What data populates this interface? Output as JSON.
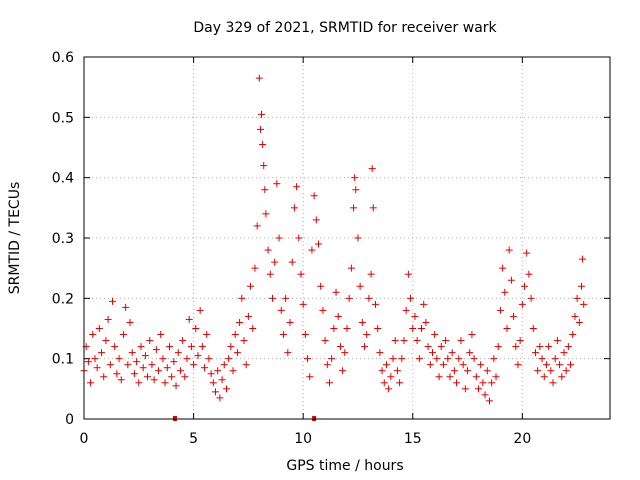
{
  "chart_data": {
    "type": "scatter",
    "title": "Day 329 of 2021, SRMTID for receiver wark",
    "xlabel": "GPS time / hours",
    "ylabel": "SRMTID / TECUs",
    "xlim": [
      0,
      24
    ],
    "ylim": [
      0,
      0.6
    ],
    "x_ticks": [
      0,
      5,
      10,
      15,
      20
    ],
    "x_tick_labels": [
      "0",
      "5",
      "10",
      "15",
      "20"
    ],
    "y_ticks": [
      0,
      0.1,
      0.2,
      0.3,
      0.4,
      0.5,
      0.6
    ],
    "y_tick_labels": [
      "0",
      "0.1",
      "0.2",
      "0.3",
      "0.4",
      "0.5",
      "0.6"
    ],
    "grid": true,
    "marker": "plus",
    "series_color": "#e00000",
    "series": [
      {
        "name": "SRMTID",
        "points": [
          [
            0.0,
            0.08
          ],
          [
            0.1,
            0.12
          ],
          [
            0.2,
            0.095
          ],
          [
            0.3,
            0.06
          ],
          [
            0.4,
            0.14
          ],
          [
            0.5,
            0.1
          ],
          [
            0.6,
            0.085
          ],
          [
            0.7,
            0.15
          ],
          [
            0.8,
            0.11
          ],
          [
            0.9,
            0.07
          ],
          [
            1.0,
            0.13
          ],
          [
            1.1,
            0.165
          ],
          [
            1.2,
            0.09
          ],
          [
            1.3,
            0.195
          ],
          [
            1.4,
            0.12
          ],
          [
            1.5,
            0.075
          ],
          [
            1.6,
            0.1
          ],
          [
            1.7,
            0.065
          ],
          [
            1.8,
            0.14
          ],
          [
            1.9,
            0.185
          ],
          [
            2.0,
            0.09
          ],
          [
            2.1,
            0.16
          ],
          [
            2.2,
            0.11
          ],
          [
            2.3,
            0.075
          ],
          [
            2.4,
            0.095
          ],
          [
            2.5,
            0.06
          ],
          [
            2.6,
            0.12
          ],
          [
            2.7,
            0.085
          ],
          [
            2.8,
            0.105
          ],
          [
            2.9,
            0.07
          ],
          [
            3.0,
            0.13
          ],
          [
            3.1,
            0.09
          ],
          [
            3.2,
            0.065
          ],
          [
            3.3,
            0.115
          ],
          [
            3.4,
            0.08
          ],
          [
            3.5,
            0.14
          ],
          [
            3.6,
            0.1
          ],
          [
            3.7,
            0.06
          ],
          [
            3.8,
            0.085
          ],
          [
            3.9,
            0.12
          ],
          [
            4.0,
            0.07
          ],
          [
            4.1,
            0.095
          ],
          [
            4.2,
            0.055
          ],
          [
            4.3,
            0.11
          ],
          [
            4.4,
            0.08
          ],
          [
            4.5,
            0.13
          ],
          [
            4.6,
            0.07
          ],
          [
            4.7,
            0.1
          ],
          [
            4.8,
            0.165
          ],
          [
            4.9,
            0.12
          ],
          [
            5.0,
            0.09
          ],
          [
            5.1,
            0.15
          ],
          [
            5.2,
            0.105
          ],
          [
            5.3,
            0.18
          ],
          [
            5.4,
            0.12
          ],
          [
            5.5,
            0.085
          ],
          [
            5.6,
            0.14
          ],
          [
            5.7,
            0.1
          ],
          [
            5.8,
            0.075
          ],
          [
            5.9,
            0.06
          ],
          [
            6.0,
            0.045
          ],
          [
            6.1,
            0.08
          ],
          [
            6.2,
            0.035
          ],
          [
            6.3,
            0.065
          ],
          [
            6.4,
            0.09
          ],
          [
            6.5,
            0.05
          ],
          [
            6.6,
            0.1
          ],
          [
            6.7,
            0.12
          ],
          [
            6.8,
            0.08
          ],
          [
            6.9,
            0.14
          ],
          [
            7.0,
            0.11
          ],
          [
            7.1,
            0.16
          ],
          [
            7.2,
            0.2
          ],
          [
            7.3,
            0.13
          ],
          [
            7.4,
            0.09
          ],
          [
            7.5,
            0.17
          ],
          [
            7.6,
            0.22
          ],
          [
            7.7,
            0.15
          ],
          [
            7.8,
            0.25
          ],
          [
            7.9,
            0.32
          ],
          [
            8.0,
            0.565
          ],
          [
            8.05,
            0.48
          ],
          [
            8.1,
            0.505
          ],
          [
            8.15,
            0.455
          ],
          [
            8.2,
            0.42
          ],
          [
            8.25,
            0.38
          ],
          [
            8.3,
            0.34
          ],
          [
            8.4,
            0.28
          ],
          [
            8.5,
            0.24
          ],
          [
            8.6,
            0.2
          ],
          [
            8.7,
            0.26
          ],
          [
            8.8,
            0.39
          ],
          [
            8.9,
            0.3
          ],
          [
            9.0,
            0.18
          ],
          [
            9.1,
            0.14
          ],
          [
            9.2,
            0.2
          ],
          [
            9.3,
            0.11
          ],
          [
            9.4,
            0.16
          ],
          [
            9.5,
            0.26
          ],
          [
            9.6,
            0.35
          ],
          [
            9.7,
            0.385
          ],
          [
            9.8,
            0.3
          ],
          [
            9.9,
            0.24
          ],
          [
            10.0,
            0.19
          ],
          [
            10.1,
            0.14
          ],
          [
            10.2,
            0.1
          ],
          [
            10.3,
            0.07
          ],
          [
            10.4,
            0.28
          ],
          [
            10.5,
            0.37
          ],
          [
            10.6,
            0.33
          ],
          [
            10.7,
            0.29
          ],
          [
            10.8,
            0.22
          ],
          [
            10.9,
            0.18
          ],
          [
            11.0,
            0.13
          ],
          [
            11.1,
            0.09
          ],
          [
            11.2,
            0.06
          ],
          [
            11.3,
            0.1
          ],
          [
            11.4,
            0.15
          ],
          [
            11.5,
            0.21
          ],
          [
            11.6,
            0.17
          ],
          [
            11.7,
            0.12
          ],
          [
            11.8,
            0.08
          ],
          [
            11.9,
            0.11
          ],
          [
            12.0,
            0.15
          ],
          [
            12.1,
            0.2
          ],
          [
            12.2,
            0.25
          ],
          [
            12.3,
            0.35
          ],
          [
            12.35,
            0.4
          ],
          [
            12.4,
            0.38
          ],
          [
            12.5,
            0.3
          ],
          [
            12.6,
            0.22
          ],
          [
            12.7,
            0.16
          ],
          [
            12.8,
            0.12
          ],
          [
            12.9,
            0.14
          ],
          [
            13.0,
            0.2
          ],
          [
            13.1,
            0.24
          ],
          [
            13.15,
            0.415
          ],
          [
            13.2,
            0.35
          ],
          [
            13.3,
            0.19
          ],
          [
            13.4,
            0.15
          ],
          [
            13.5,
            0.11
          ],
          [
            13.6,
            0.08
          ],
          [
            13.7,
            0.06
          ],
          [
            13.8,
            0.09
          ],
          [
            13.9,
            0.05
          ],
          [
            14.0,
            0.07
          ],
          [
            14.1,
            0.1
          ],
          [
            14.2,
            0.13
          ],
          [
            14.3,
            0.08
          ],
          [
            14.4,
            0.06
          ],
          [
            14.5,
            0.1
          ],
          [
            14.6,
            0.13
          ],
          [
            14.7,
            0.18
          ],
          [
            14.8,
            0.24
          ],
          [
            14.9,
            0.2
          ],
          [
            15.0,
            0.15
          ],
          [
            15.1,
            0.17
          ],
          [
            15.2,
            0.13
          ],
          [
            15.3,
            0.1
          ],
          [
            15.4,
            0.15
          ],
          [
            15.5,
            0.19
          ],
          [
            15.6,
            0.16
          ],
          [
            15.7,
            0.12
          ],
          [
            15.8,
            0.09
          ],
          [
            15.9,
            0.11
          ],
          [
            16.0,
            0.14
          ],
          [
            16.1,
            0.1
          ],
          [
            16.2,
            0.07
          ],
          [
            16.3,
            0.12
          ],
          [
            16.4,
            0.09
          ],
          [
            16.5,
            0.13
          ],
          [
            16.6,
            0.1
          ],
          [
            16.7,
            0.07
          ],
          [
            16.8,
            0.11
          ],
          [
            16.9,
            0.08
          ],
          [
            17.0,
            0.06
          ],
          [
            17.1,
            0.1
          ],
          [
            17.2,
            0.13
          ],
          [
            17.3,
            0.09
          ],
          [
            17.4,
            0.05
          ],
          [
            17.5,
            0.08
          ],
          [
            17.6,
            0.11
          ],
          [
            17.7,
            0.14
          ],
          [
            17.8,
            0.1
          ],
          [
            17.9,
            0.07
          ],
          [
            18.0,
            0.05
          ],
          [
            18.1,
            0.09
          ],
          [
            18.2,
            0.06
          ],
          [
            18.3,
            0.04
          ],
          [
            18.4,
            0.08
          ],
          [
            18.5,
            0.03
          ],
          [
            18.6,
            0.06
          ],
          [
            18.7,
            0.1
          ],
          [
            18.8,
            0.07
          ],
          [
            18.9,
            0.12
          ],
          [
            19.0,
            0.18
          ],
          [
            19.1,
            0.25
          ],
          [
            19.2,
            0.21
          ],
          [
            19.3,
            0.15
          ],
          [
            19.4,
            0.28
          ],
          [
            19.5,
            0.23
          ],
          [
            19.6,
            0.17
          ],
          [
            19.7,
            0.12
          ],
          [
            19.8,
            0.09
          ],
          [
            19.9,
            0.13
          ],
          [
            20.0,
            0.19
          ],
          [
            20.1,
            0.22
          ],
          [
            20.2,
            0.275
          ],
          [
            20.3,
            0.24
          ],
          [
            20.4,
            0.2
          ],
          [
            20.5,
            0.15
          ],
          [
            20.6,
            0.11
          ],
          [
            20.7,
            0.08
          ],
          [
            20.8,
            0.12
          ],
          [
            20.9,
            0.1
          ],
          [
            21.0,
            0.07
          ],
          [
            21.1,
            0.09
          ],
          [
            21.2,
            0.12
          ],
          [
            21.3,
            0.08
          ],
          [
            21.4,
            0.06
          ],
          [
            21.5,
            0.1
          ],
          [
            21.6,
            0.13
          ],
          [
            21.7,
            0.09
          ],
          [
            21.8,
            0.07
          ],
          [
            21.9,
            0.11
          ],
          [
            22.0,
            0.08
          ],
          [
            22.1,
            0.12
          ],
          [
            22.2,
            0.09
          ],
          [
            22.3,
            0.14
          ],
          [
            22.4,
            0.17
          ],
          [
            22.5,
            0.2
          ],
          [
            22.6,
            0.16
          ],
          [
            22.7,
            0.22
          ],
          [
            22.75,
            0.265
          ],
          [
            22.8,
            0.19
          ]
        ]
      }
    ],
    "bottom_markers_x": [
      4.15,
      10.5
    ]
  }
}
